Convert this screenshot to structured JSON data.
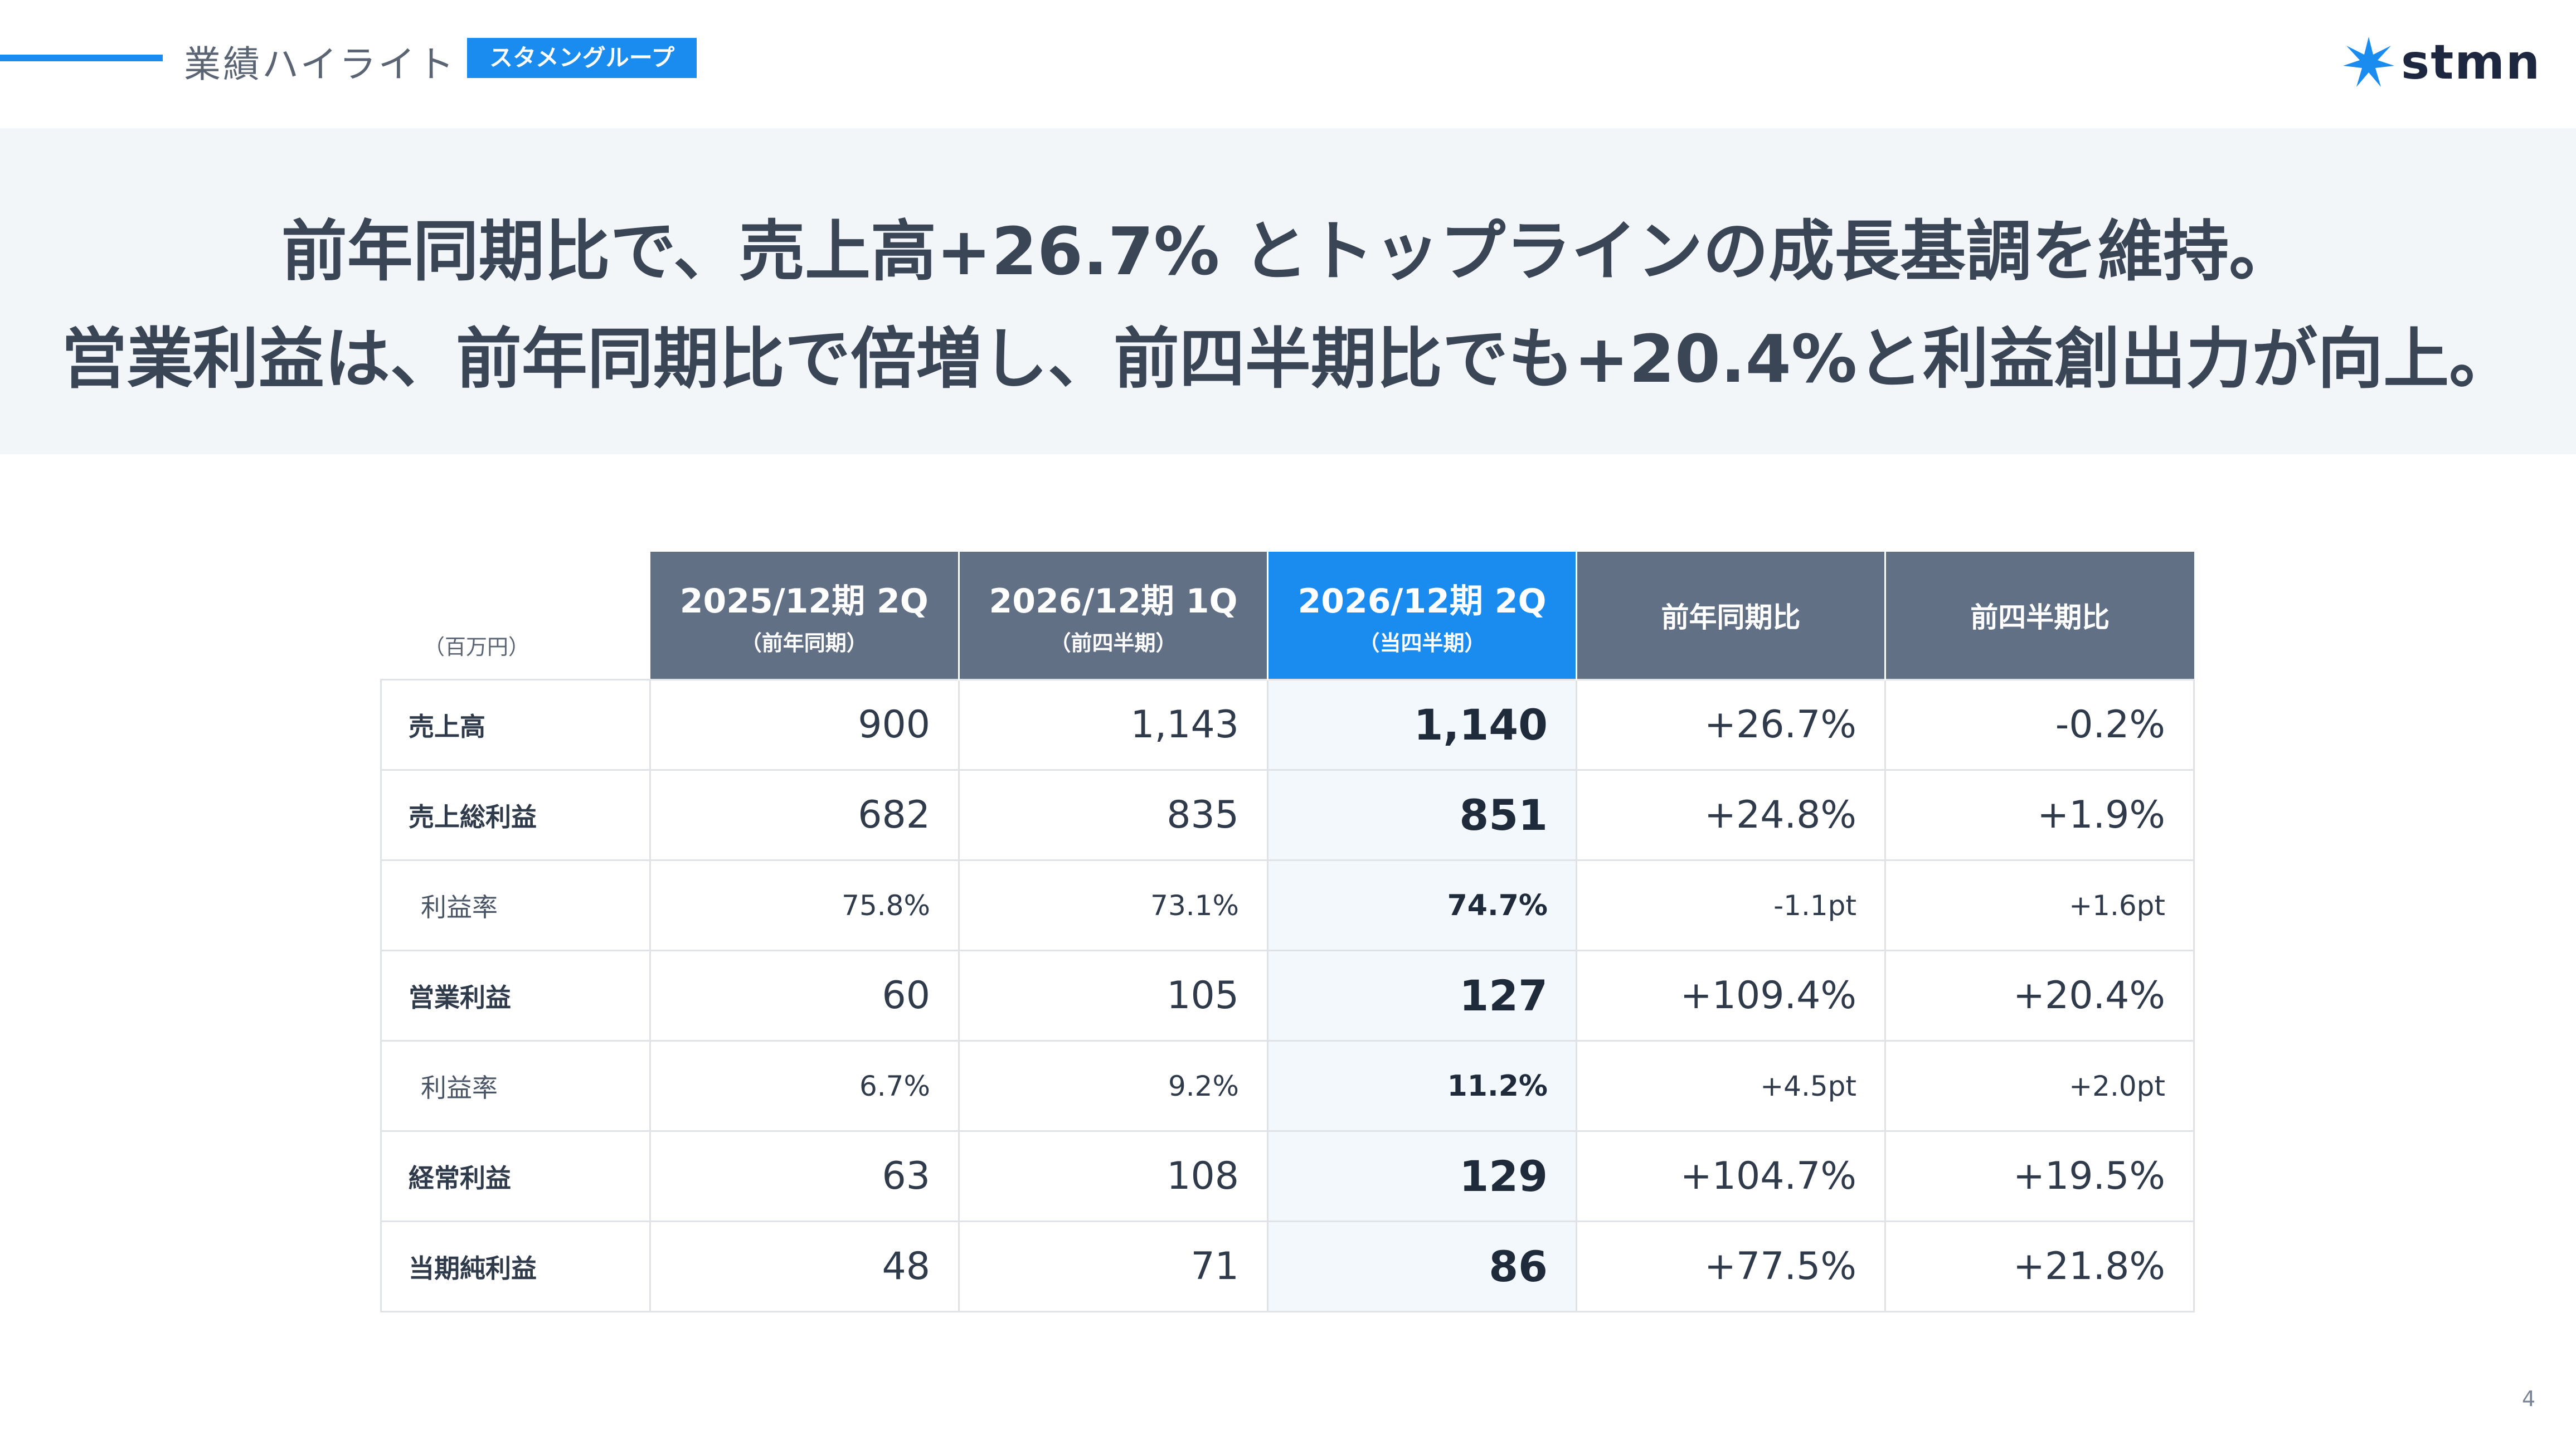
{
  "header": {
    "section_title": "業績ハイライト",
    "group_badge": "スタメングループ",
    "logo_text": "stmn",
    "logo_icon": "star-burst-icon",
    "accent_color": "#1a8cf0"
  },
  "headline": {
    "line1": "前年同期比で、売上高+26.7% とトップラインの成長基調を維持。",
    "line2": "営業利益は、前年同期比で倍増し、前四半期比でも+20.4%と利益創出力が向上。"
  },
  "table": {
    "unit": "（百万円）",
    "columns": [
      {
        "main": "2025/12期 2Q",
        "sub": "（前年同期）"
      },
      {
        "main": "2026/12期 1Q",
        "sub": "（前四半期）"
      },
      {
        "main": "2026/12期 2Q",
        "sub": "（当四半期）"
      },
      {
        "main": "前年同期比",
        "sub": ""
      },
      {
        "main": "前四半期比",
        "sub": ""
      }
    ],
    "rows": [
      {
        "label": "売上高",
        "values": [
          "900",
          "1,143",
          "1,140",
          "+26.7%",
          "-0.2%"
        ]
      },
      {
        "label": "売上総利益",
        "values": [
          "682",
          "835",
          "851",
          "+24.8%",
          "+1.9%"
        ]
      },
      {
        "label": "利益率",
        "values": [
          "75.8%",
          "73.1%",
          "74.7%",
          "-1.1pt",
          "+1.6pt"
        ]
      },
      {
        "label": "営業利益",
        "values": [
          "60",
          "105",
          "127",
          "+109.4%",
          "+20.4%"
        ]
      },
      {
        "label": "利益率",
        "values": [
          "6.7%",
          "9.2%",
          "11.2%",
          "+4.5pt",
          "+2.0pt"
        ]
      },
      {
        "label": "経常利益",
        "values": [
          "63",
          "108",
          "129",
          "+104.7%",
          "+19.5%"
        ]
      },
      {
        "label": "当期純利益",
        "values": [
          "48",
          "71",
          "86",
          "+77.5%",
          "+21.8%"
        ]
      }
    ],
    "negative_color": "#e96a6a",
    "highlight_color": "#1a8cf0"
  },
  "page_number": "4"
}
